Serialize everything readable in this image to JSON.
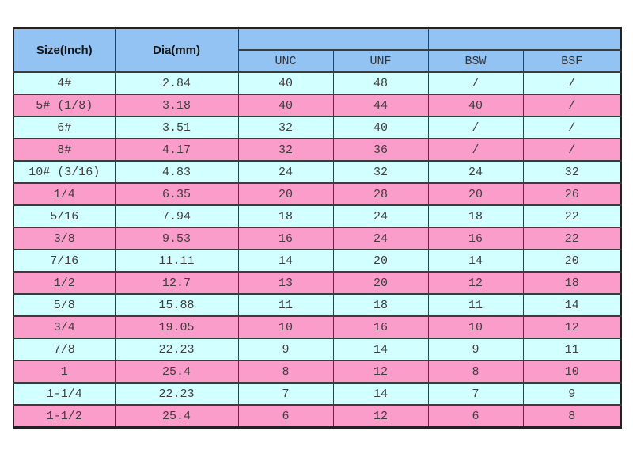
{
  "table": {
    "header": {
      "size_label": "Size(Inch)",
      "dia_label": "Dia(mm)",
      "sub_columns": [
        "UNC",
        "UNF",
        "BSW",
        "BSF"
      ]
    },
    "column_keys": [
      "size",
      "dia",
      "unc",
      "unf",
      "bsw",
      "bsf"
    ],
    "rows": [
      {
        "size": "4#",
        "dia": "2.84",
        "unc": "40",
        "unf": "48",
        "bsw": "/",
        "bsf": "/"
      },
      {
        "size": "5# (1/8)",
        "dia": "3.18",
        "unc": "40",
        "unf": "44",
        "bsw": "40",
        "bsf": "/"
      },
      {
        "size": "6#",
        "dia": "3.51",
        "unc": "32",
        "unf": "40",
        "bsw": "/",
        "bsf": "/"
      },
      {
        "size": "8#",
        "dia": "4.17",
        "unc": "32",
        "unf": "36",
        "bsw": "/",
        "bsf": "/"
      },
      {
        "size": "10# (3/16)",
        "dia": "4.83",
        "unc": "24",
        "unf": "32",
        "bsw": "24",
        "bsf": "32"
      },
      {
        "size": "1/4",
        "dia": "6.35",
        "unc": "20",
        "unf": "28",
        "bsw": "20",
        "bsf": "26"
      },
      {
        "size": "5/16",
        "dia": "7.94",
        "unc": "18",
        "unf": "24",
        "bsw": "18",
        "bsf": "22"
      },
      {
        "size": "3/8",
        "dia": "9.53",
        "unc": "16",
        "unf": "24",
        "bsw": "16",
        "bsf": "22"
      },
      {
        "size": "7/16",
        "dia": "11.11",
        "unc": "14",
        "unf": "20",
        "bsw": "14",
        "bsf": "20"
      },
      {
        "size": "1/2",
        "dia": "12.7",
        "unc": "13",
        "unf": "20",
        "bsw": "12",
        "bsf": "18"
      },
      {
        "size": "5/8",
        "dia": "15.88",
        "unc": "11",
        "unf": "18",
        "bsw": "11",
        "bsf": "14"
      },
      {
        "size": "3/4",
        "dia": "19.05",
        "unc": "10",
        "unf": "16",
        "bsw": "10",
        "bsf": "12"
      },
      {
        "size": "7/8",
        "dia": "22.23",
        "unc": "9",
        "unf": "14",
        "bsw": "9",
        "bsf": "11"
      },
      {
        "size": "1",
        "dia": "25.4",
        "unc": "8",
        "unf": "12",
        "bsw": "8",
        "bsf": "10"
      },
      {
        "size": "1-1/4",
        "dia": "22.23",
        "unc": "7",
        "unf": "14",
        "bsw": "7",
        "bsf": "9"
      },
      {
        "size": "1-1/2",
        "dia": "25.4",
        "unc": "6",
        "unf": "12",
        "bsw": "6",
        "bsf": "8"
      }
    ],
    "colors": {
      "header_bg": "#92c3f3",
      "row_cyan": "#d2ffff",
      "row_pink": "#fb9dcb",
      "border": "#3c3c3c",
      "cell_text": "#3d3d3d"
    }
  }
}
